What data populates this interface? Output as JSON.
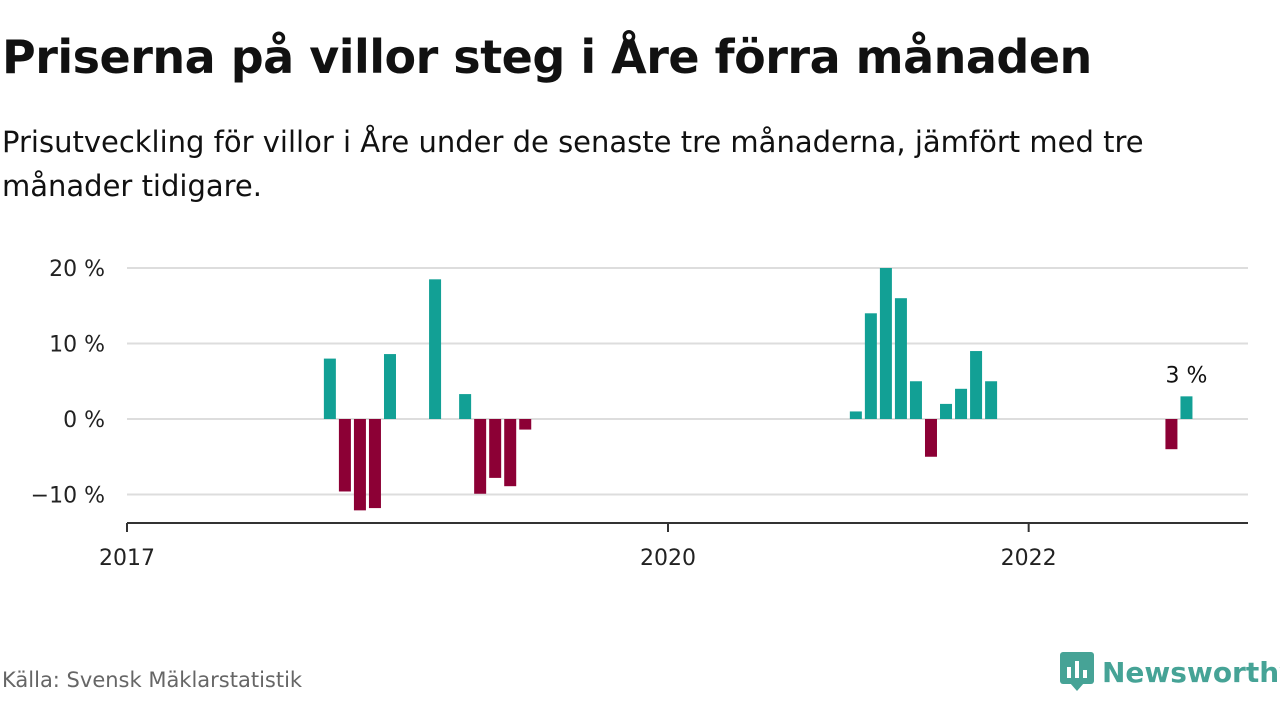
{
  "header": {
    "title": "Priserna på villor steg i Åre förra månaden",
    "subtitle": "Prisutveckling för villor i Åre under de senaste tre månaderna, jämfört med tre månader tidigare."
  },
  "footer": {
    "source": "Källa: Svensk Mäklarstatistik",
    "brand": "Newsworthy",
    "brand_icon": "newsworthy-logo-icon"
  },
  "colors": {
    "positive": "#12a095",
    "negative": "#8c0035",
    "grid": "#dddddd",
    "axis": "#333333",
    "text": "#111111"
  },
  "chart_data": {
    "type": "bar",
    "title": "Priserna på villor steg i Åre förra månaden",
    "subtitle": "Prisutveckling för villor i Åre under de senaste tre månaderna, jämfört med tre månader tidigare.",
    "xlabel": "",
    "ylabel": "",
    "x_ticks": [
      "2017",
      "2020",
      "2022"
    ],
    "y_ticks": [
      20,
      10,
      0,
      -10
    ],
    "y_tick_labels": [
      "20 %",
      "10 %",
      "0 %",
      "−10 %"
    ],
    "ylim": [
      -13.5,
      20
    ],
    "grid": true,
    "legend": "none",
    "series": [
      {
        "data": [
          {
            "date": "2018-02",
            "value": 8
          },
          {
            "date": "2018-03",
            "value": -9.6
          },
          {
            "date": "2018-04",
            "value": -12.1
          },
          {
            "date": "2018-05",
            "value": -11.8
          },
          {
            "date": "2018-06",
            "value": 8.6
          },
          {
            "date": "2018-09",
            "value": 18.5
          },
          {
            "date": "2018-11",
            "value": 3.3
          },
          {
            "date": "2018-12",
            "value": -9.9
          },
          {
            "date": "2019-01",
            "value": -7.8
          },
          {
            "date": "2019-02",
            "value": -8.9
          },
          {
            "date": "2019-03",
            "value": -1.4
          },
          {
            "date": "2021-01",
            "value": 1
          },
          {
            "date": "2021-02",
            "value": 14
          },
          {
            "date": "2021-03",
            "value": 20
          },
          {
            "date": "2021-04",
            "value": 16
          },
          {
            "date": "2021-05",
            "value": 5
          },
          {
            "date": "2021-06",
            "value": -5
          },
          {
            "date": "2021-07",
            "value": 2
          },
          {
            "date": "2021-08",
            "value": 4
          },
          {
            "date": "2021-09",
            "value": 9
          },
          {
            "date": "2021-10",
            "value": 5
          },
          {
            "date": "2022-10",
            "value": -4
          },
          {
            "date": "2022-11",
            "value": 3
          }
        ]
      }
    ],
    "annotations": [
      {
        "date": "2022-11",
        "text": "3 %"
      }
    ]
  }
}
